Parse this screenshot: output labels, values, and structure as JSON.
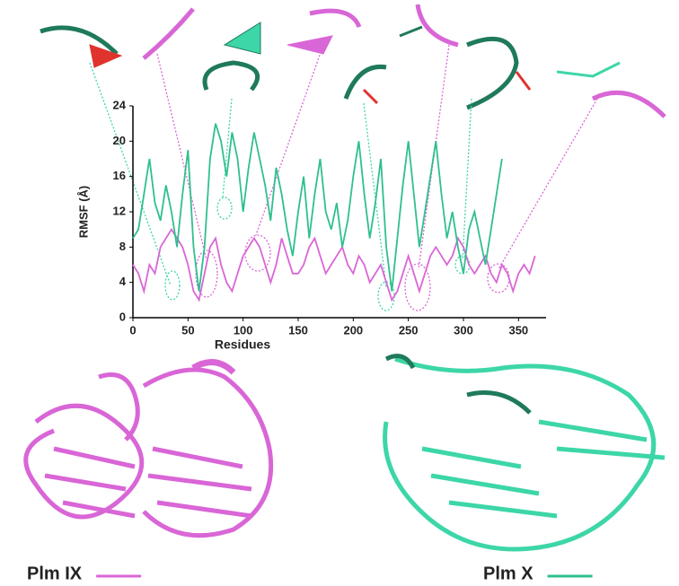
{
  "chart_data": {
    "type": "line",
    "x_label": "Residues",
    "y_label": "RMSF (Å)",
    "x": [
      0,
      5,
      10,
      15,
      20,
      25,
      30,
      35,
      40,
      45,
      50,
      55,
      60,
      65,
      70,
      75,
      80,
      85,
      90,
      95,
      100,
      105,
      110,
      115,
      120,
      125,
      130,
      135,
      140,
      145,
      150,
      155,
      160,
      165,
      170,
      175,
      180,
      185,
      190,
      195,
      200,
      205,
      210,
      215,
      220,
      225,
      230,
      235,
      240,
      245,
      250,
      255,
      260,
      265,
      270,
      275,
      280,
      285,
      290,
      295,
      300,
      305,
      310,
      315,
      320,
      325,
      330,
      335,
      340,
      345,
      350,
      355,
      360,
      365
    ],
    "series": [
      {
        "name": "Plm IX",
        "color": "#d966d6",
        "values": [
          6,
          5,
          3,
          6,
          5,
          8,
          9,
          10,
          9,
          8,
          6,
          3,
          2,
          5,
          8,
          9,
          6,
          4,
          3,
          5,
          7,
          8,
          9,
          8,
          6,
          4,
          6,
          9,
          7,
          5,
          5,
          6,
          8,
          9,
          7,
          5,
          6,
          7,
          8,
          6,
          5,
          7,
          6,
          4,
          5,
          6,
          4,
          2,
          3,
          5,
          7,
          5,
          3,
          5,
          7,
          8,
          7,
          6,
          7,
          9,
          8,
          6,
          5,
          6,
          7,
          5,
          4,
          6,
          5,
          3,
          5,
          6,
          5,
          7
        ]
      },
      {
        "name": "Plm X",
        "color": "#2fbf8f",
        "values": [
          9,
          10,
          14,
          18,
          13,
          11,
          15,
          12,
          8,
          14,
          19,
          8,
          3,
          8,
          18,
          22,
          20,
          16,
          21,
          18,
          12,
          17,
          21,
          18,
          15,
          11,
          17,
          14,
          10,
          7,
          12,
          16,
          9,
          14,
          18,
          12,
          10,
          13,
          8,
          11,
          16,
          20,
          14,
          9,
          13,
          18,
          8,
          3,
          9,
          15,
          20,
          14,
          8,
          12,
          16,
          20,
          14,
          9,
          12,
          8,
          5,
          10,
          12,
          9,
          6,
          10,
          14,
          18,
          null,
          null,
          null,
          null,
          null,
          null
        ]
      }
    ],
    "xlim": [
      0,
      375
    ],
    "ylim": [
      0,
      24
    ],
    "xticks": [
      0,
      50,
      100,
      150,
      200,
      250,
      300,
      350
    ],
    "yticks": [
      0,
      4,
      8,
      12,
      16,
      20,
      24
    ]
  }
}
